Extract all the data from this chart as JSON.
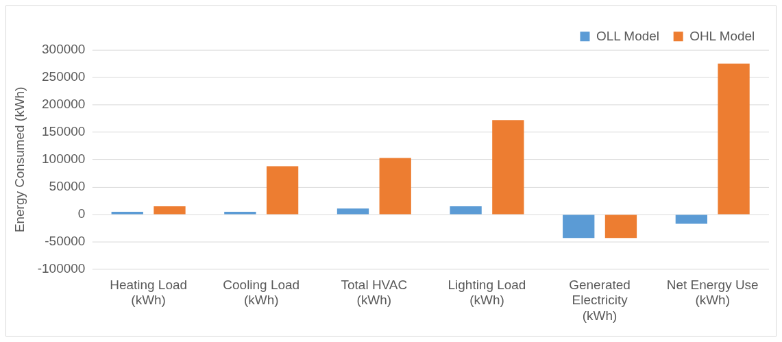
{
  "chart_data": {
    "type": "bar",
    "ylabel": "Energy Consumed (kWh)",
    "categories": [
      "Heating Load (kWh)",
      "Cooling Load (kWh)",
      "Total HVAC (kWh)",
      "Lighting Load (kWh)",
      "Generated Electricity (kWh)",
      "Net Energy Use (kWh)"
    ],
    "series": [
      {
        "name": "OLL Model",
        "color": "#5b9bd5",
        "values": [
          5000,
          5000,
          11000,
          15000,
          -43000,
          -17000
        ]
      },
      {
        "name": "OHL Model",
        "color": "#ed7d31",
        "values": [
          15000,
          88000,
          103000,
          172000,
          -43000,
          275000
        ]
      }
    ],
    "ylim": [
      -100000,
      300000
    ],
    "yticks": [
      -100000,
      -50000,
      0,
      50000,
      100000,
      150000,
      200000,
      250000,
      300000
    ],
    "grid": "y",
    "legend": "top right"
  }
}
